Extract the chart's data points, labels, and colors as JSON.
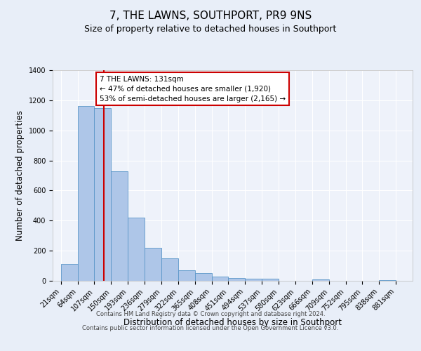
{
  "title": "7, THE LAWNS, SOUTHPORT, PR9 9NS",
  "subtitle": "Size of property relative to detached houses in Southport",
  "xlabel": "Distribution of detached houses by size in Southport",
  "ylabel": "Number of detached properties",
  "categories": [
    "21sqm",
    "64sqm",
    "107sqm",
    "150sqm",
    "193sqm",
    "236sqm",
    "279sqm",
    "322sqm",
    "365sqm",
    "408sqm",
    "451sqm",
    "494sqm",
    "537sqm",
    "580sqm",
    "623sqm",
    "666sqm",
    "709sqm",
    "752sqm",
    "795sqm",
    "838sqm",
    "881sqm"
  ],
  "bar_heights": [
    110,
    1160,
    1150,
    730,
    420,
    220,
    150,
    70,
    50,
    30,
    20,
    15,
    15,
    0,
    0,
    10,
    0,
    0,
    0,
    5,
    0
  ],
  "bar_color": "#aec6e8",
  "bar_edge_color": "#5a96c8",
  "bin_starts": [
    21,
    64,
    107,
    150,
    193,
    236,
    279,
    322,
    365,
    408,
    451,
    494,
    537,
    580,
    623,
    666,
    709,
    752,
    795,
    838,
    881
  ],
  "bin_width": 43,
  "vline_x": 131,
  "vline_color": "#cc0000",
  "annotation_text": "7 THE LAWNS: 131sqm\n← 47% of detached houses are smaller (1,920)\n53% of semi-detached houses are larger (2,165) →",
  "annotation_box_color": "#ffffff",
  "annotation_box_edge_color": "#cc0000",
  "ylim": [
    0,
    1400
  ],
  "yticks": [
    0,
    200,
    400,
    600,
    800,
    1000,
    1200,
    1400
  ],
  "xlim": [
    0,
    924
  ],
  "bg_color": "#e8eef8",
  "plot_bg_color": "#eef2fa",
  "footer_line1": "Contains HM Land Registry data © Crown copyright and database right 2024.",
  "footer_line2": "Contains public sector information licensed under the Open Government Licence v3.0.",
  "title_fontsize": 11,
  "subtitle_fontsize": 9,
  "ylabel_fontsize": 8.5,
  "xlabel_fontsize": 8.5,
  "tick_fontsize": 7,
  "annotation_fontsize": 7.5,
  "footer_fontsize": 6
}
